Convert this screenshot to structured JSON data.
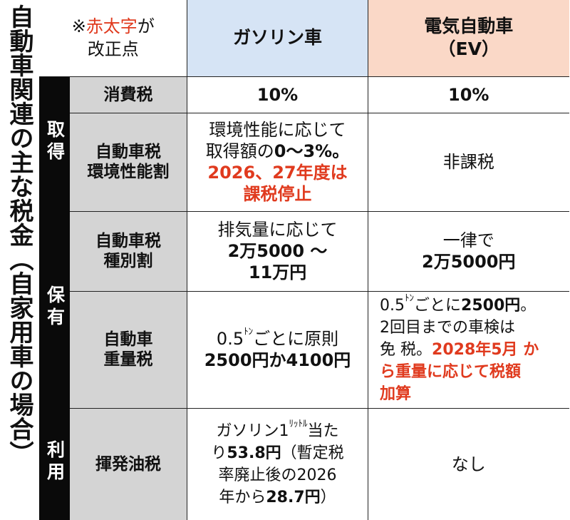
{
  "vertical_title": "自動車関連の主な税金（自家用車の場合）",
  "header": {
    "note_mark": "※",
    "note_red": "赤太字",
    "note_tail": "が",
    "note_line2": "改正点",
    "gasoline": "ガソリン車",
    "ev_line1": "電気自動車",
    "ev_line2": "（EV）"
  },
  "colors": {
    "red": "#e03a1e",
    "gas_header": "#d6e4f5",
    "ev_header": "#fad8c7",
    "category_bg": "#0a0a0a",
    "item_bg": "#d4d4d4"
  },
  "categories": {
    "acquisition": "取得",
    "holding": "保有",
    "use": "利用"
  },
  "rows": {
    "consumption": {
      "name": "消費税",
      "gas": "10%",
      "ev": "10%"
    },
    "env": {
      "name1": "自動車税",
      "name2": "環境性能割",
      "gas_l1": "環境性能に応じて",
      "gas_l2a": "取得額の",
      "gas_l2b": "0～3%。",
      "gas_red1": "2026、27年度は",
      "gas_red2": "課税停止",
      "ev": "非課税"
    },
    "type": {
      "name1": "自動車税",
      "name2": "種別割",
      "gas_l1": "排気量に応じて",
      "gas_l2": "2万5000 ～",
      "gas_l3": "11万円",
      "ev_l1": "一律で",
      "ev_l2": "2万5000円"
    },
    "weight": {
      "name1": "自動車",
      "name2": "重量税",
      "gas_l1a": "0.5",
      "gas_unit": "ﾄﾝ",
      "gas_l1b": "ごとに原則",
      "gas_l2": "2500円か4100円",
      "ev_l1a": "0.5",
      "ev_unit": "ﾄﾝ",
      "ev_l1b": "ごとに",
      "ev_l1c": "2500円",
      "ev_l1d": "。",
      "ev_l2": "2回目までの車検は",
      "ev_l3a": "免 税。",
      "ev_l3b": "2028年5月 か",
      "ev_red2": "ら重量に応じて税額",
      "ev_red3": "加算"
    },
    "fuel": {
      "name": "揮発油税",
      "gas_l1a": "ガソリン1",
      "gas_unit": "ﾘｯﾄﾙ",
      "gas_l1b": "当た",
      "gas_l2a": "り",
      "gas_l2b": "53.8円",
      "gas_l2c": "（暫定税",
      "gas_l3": "率廃止後の2026",
      "gas_l4a": "年から",
      "gas_l4b": "28.7円",
      "gas_l4c": "）",
      "ev": "なし"
    }
  }
}
